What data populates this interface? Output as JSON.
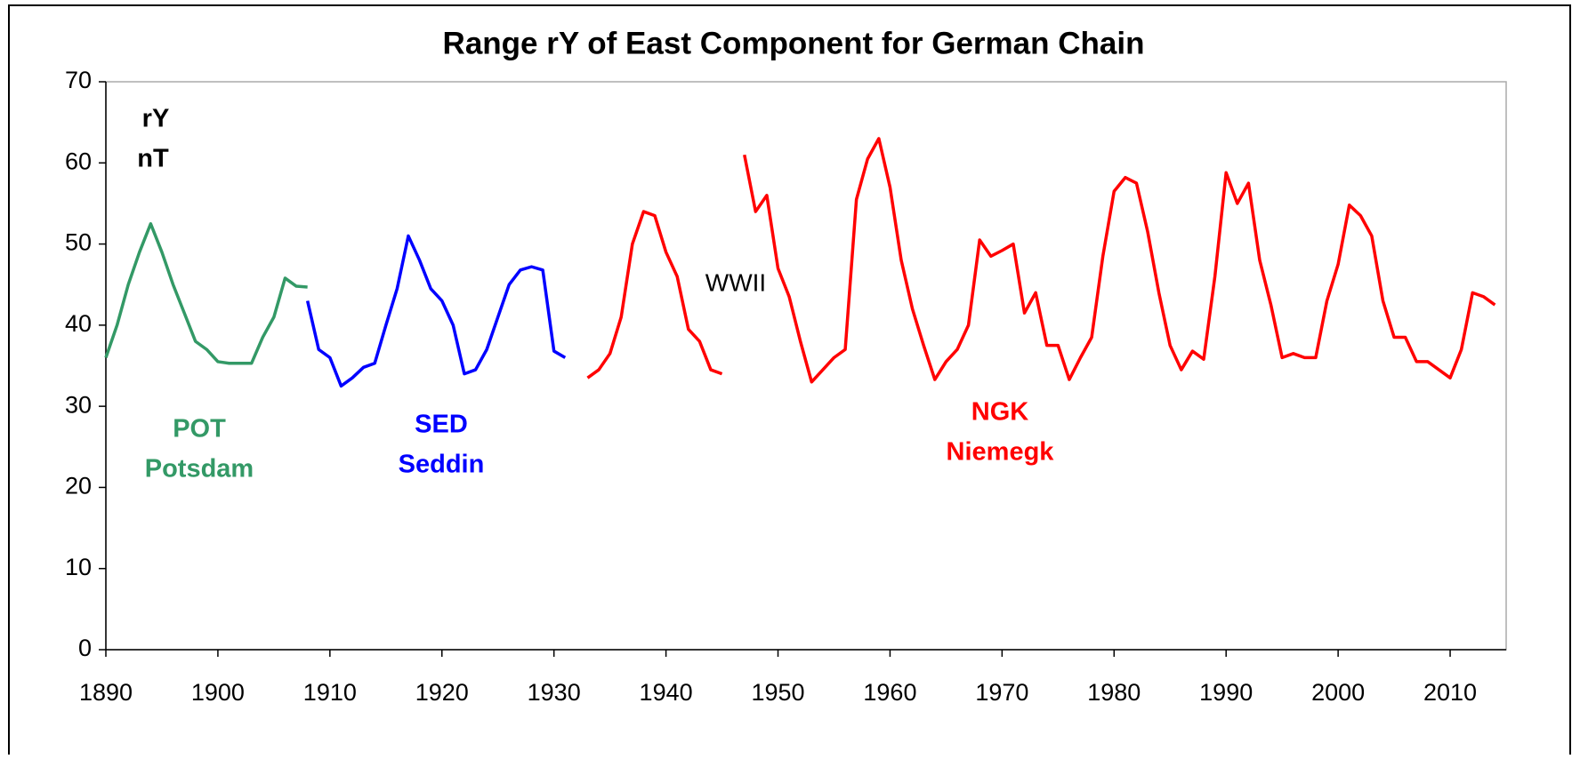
{
  "chart_data": {
    "type": "line",
    "title": "Range rY of East Component for German Chain",
    "annotations": [
      "rY",
      "nT",
      "WWII"
    ],
    "xlim": [
      1890,
      2015
    ],
    "xticks": [
      1890,
      1900,
      1910,
      1920,
      1930,
      1940,
      1950,
      1960,
      1970,
      1980,
      1990,
      2000,
      2010
    ],
    "ylim": [
      0,
      70
    ],
    "yticks": [
      0,
      10,
      20,
      30,
      40,
      50,
      60,
      70
    ],
    "series": [
      {
        "name": "POT",
        "station": "Potsdam",
        "color": "#339966",
        "x": [
          1890,
          1891,
          1892,
          1893,
          1894,
          1895,
          1896,
          1897,
          1898,
          1899,
          1900,
          1901,
          1902,
          1903,
          1904,
          1905,
          1906,
          1907,
          1908
        ],
        "values": [
          36,
          40,
          45,
          49,
          52.5,
          49,
          45,
          41.5,
          38,
          37,
          35.5,
          35.3,
          35.3,
          35.3,
          38.5,
          41,
          45.8,
          44.8,
          44.7
        ]
      },
      {
        "name": "SED",
        "station": "Seddin",
        "color": "#0000ff",
        "x": [
          1908,
          1909,
          1910,
          1911,
          1912,
          1913,
          1914,
          1915,
          1916,
          1917,
          1918,
          1919,
          1920,
          1921,
          1922,
          1923,
          1924,
          1925,
          1926,
          1927,
          1928,
          1929,
          1930,
          1931
        ],
        "values": [
          43,
          37,
          36,
          32.5,
          33.5,
          34.8,
          35.3,
          40,
          44.5,
          51,
          48,
          44.5,
          43,
          40,
          34,
          34.5,
          37,
          41,
          45,
          46.8,
          47.2,
          46.8,
          36.8,
          36
        ]
      },
      {
        "name": "NGK",
        "station": "Niemegk",
        "color": "#ff0000",
        "x": [
          1933,
          1934,
          1935,
          1936,
          1937,
          1938,
          1939,
          1940,
          1941,
          1942,
          1943,
          1944,
          1945,
          1946,
          1947,
          1948,
          1949,
          1950,
          1951,
          1952,
          1953,
          1954,
          1955,
          1956,
          1957,
          1958,
          1959,
          1960,
          1961,
          1962,
          1963,
          1964,
          1965,
          1966,
          1967,
          1968,
          1969,
          1970,
          1971,
          1972,
          1973,
          1974,
          1975,
          1976,
          1977,
          1978,
          1979,
          1980,
          1981,
          1982,
          1983,
          1984,
          1985,
          1986,
          1987,
          1988,
          1989,
          1990,
          1991,
          1992,
          1993,
          1994,
          1995,
          1996,
          1997,
          1998,
          1999,
          2000,
          2001,
          2002,
          2003,
          2004,
          2005,
          2006,
          2007,
          2008,
          2009,
          2010,
          2011,
          2012,
          2013,
          2014
        ],
        "values": [
          33.5,
          34.5,
          36.5,
          41,
          50,
          54,
          53.5,
          49,
          46,
          39.5,
          38,
          34.5,
          34,
          null,
          61,
          54,
          56,
          47,
          43.5,
          38,
          33,
          34.5,
          36,
          37,
          55.5,
          60.5,
          63,
          57,
          48,
          42,
          37.5,
          33.3,
          35.5,
          37,
          40,
          50.5,
          48.5,
          49.2,
          50,
          41.5,
          44,
          37.5,
          37.5,
          33.3,
          36,
          38.5,
          48.5,
          56.5,
          58.2,
          57.5,
          51.5,
          44,
          37.5,
          34.5,
          36.8,
          35.8,
          46,
          58.8,
          55,
          57.5,
          48,
          42.5,
          36,
          36.5,
          36,
          36,
          43,
          47.5,
          54.8,
          53.5,
          51,
          43,
          38.5,
          38.5,
          35.5,
          35.5,
          34.5,
          33.5,
          37,
          44,
          43.5,
          42.5
        ]
      }
    ]
  }
}
